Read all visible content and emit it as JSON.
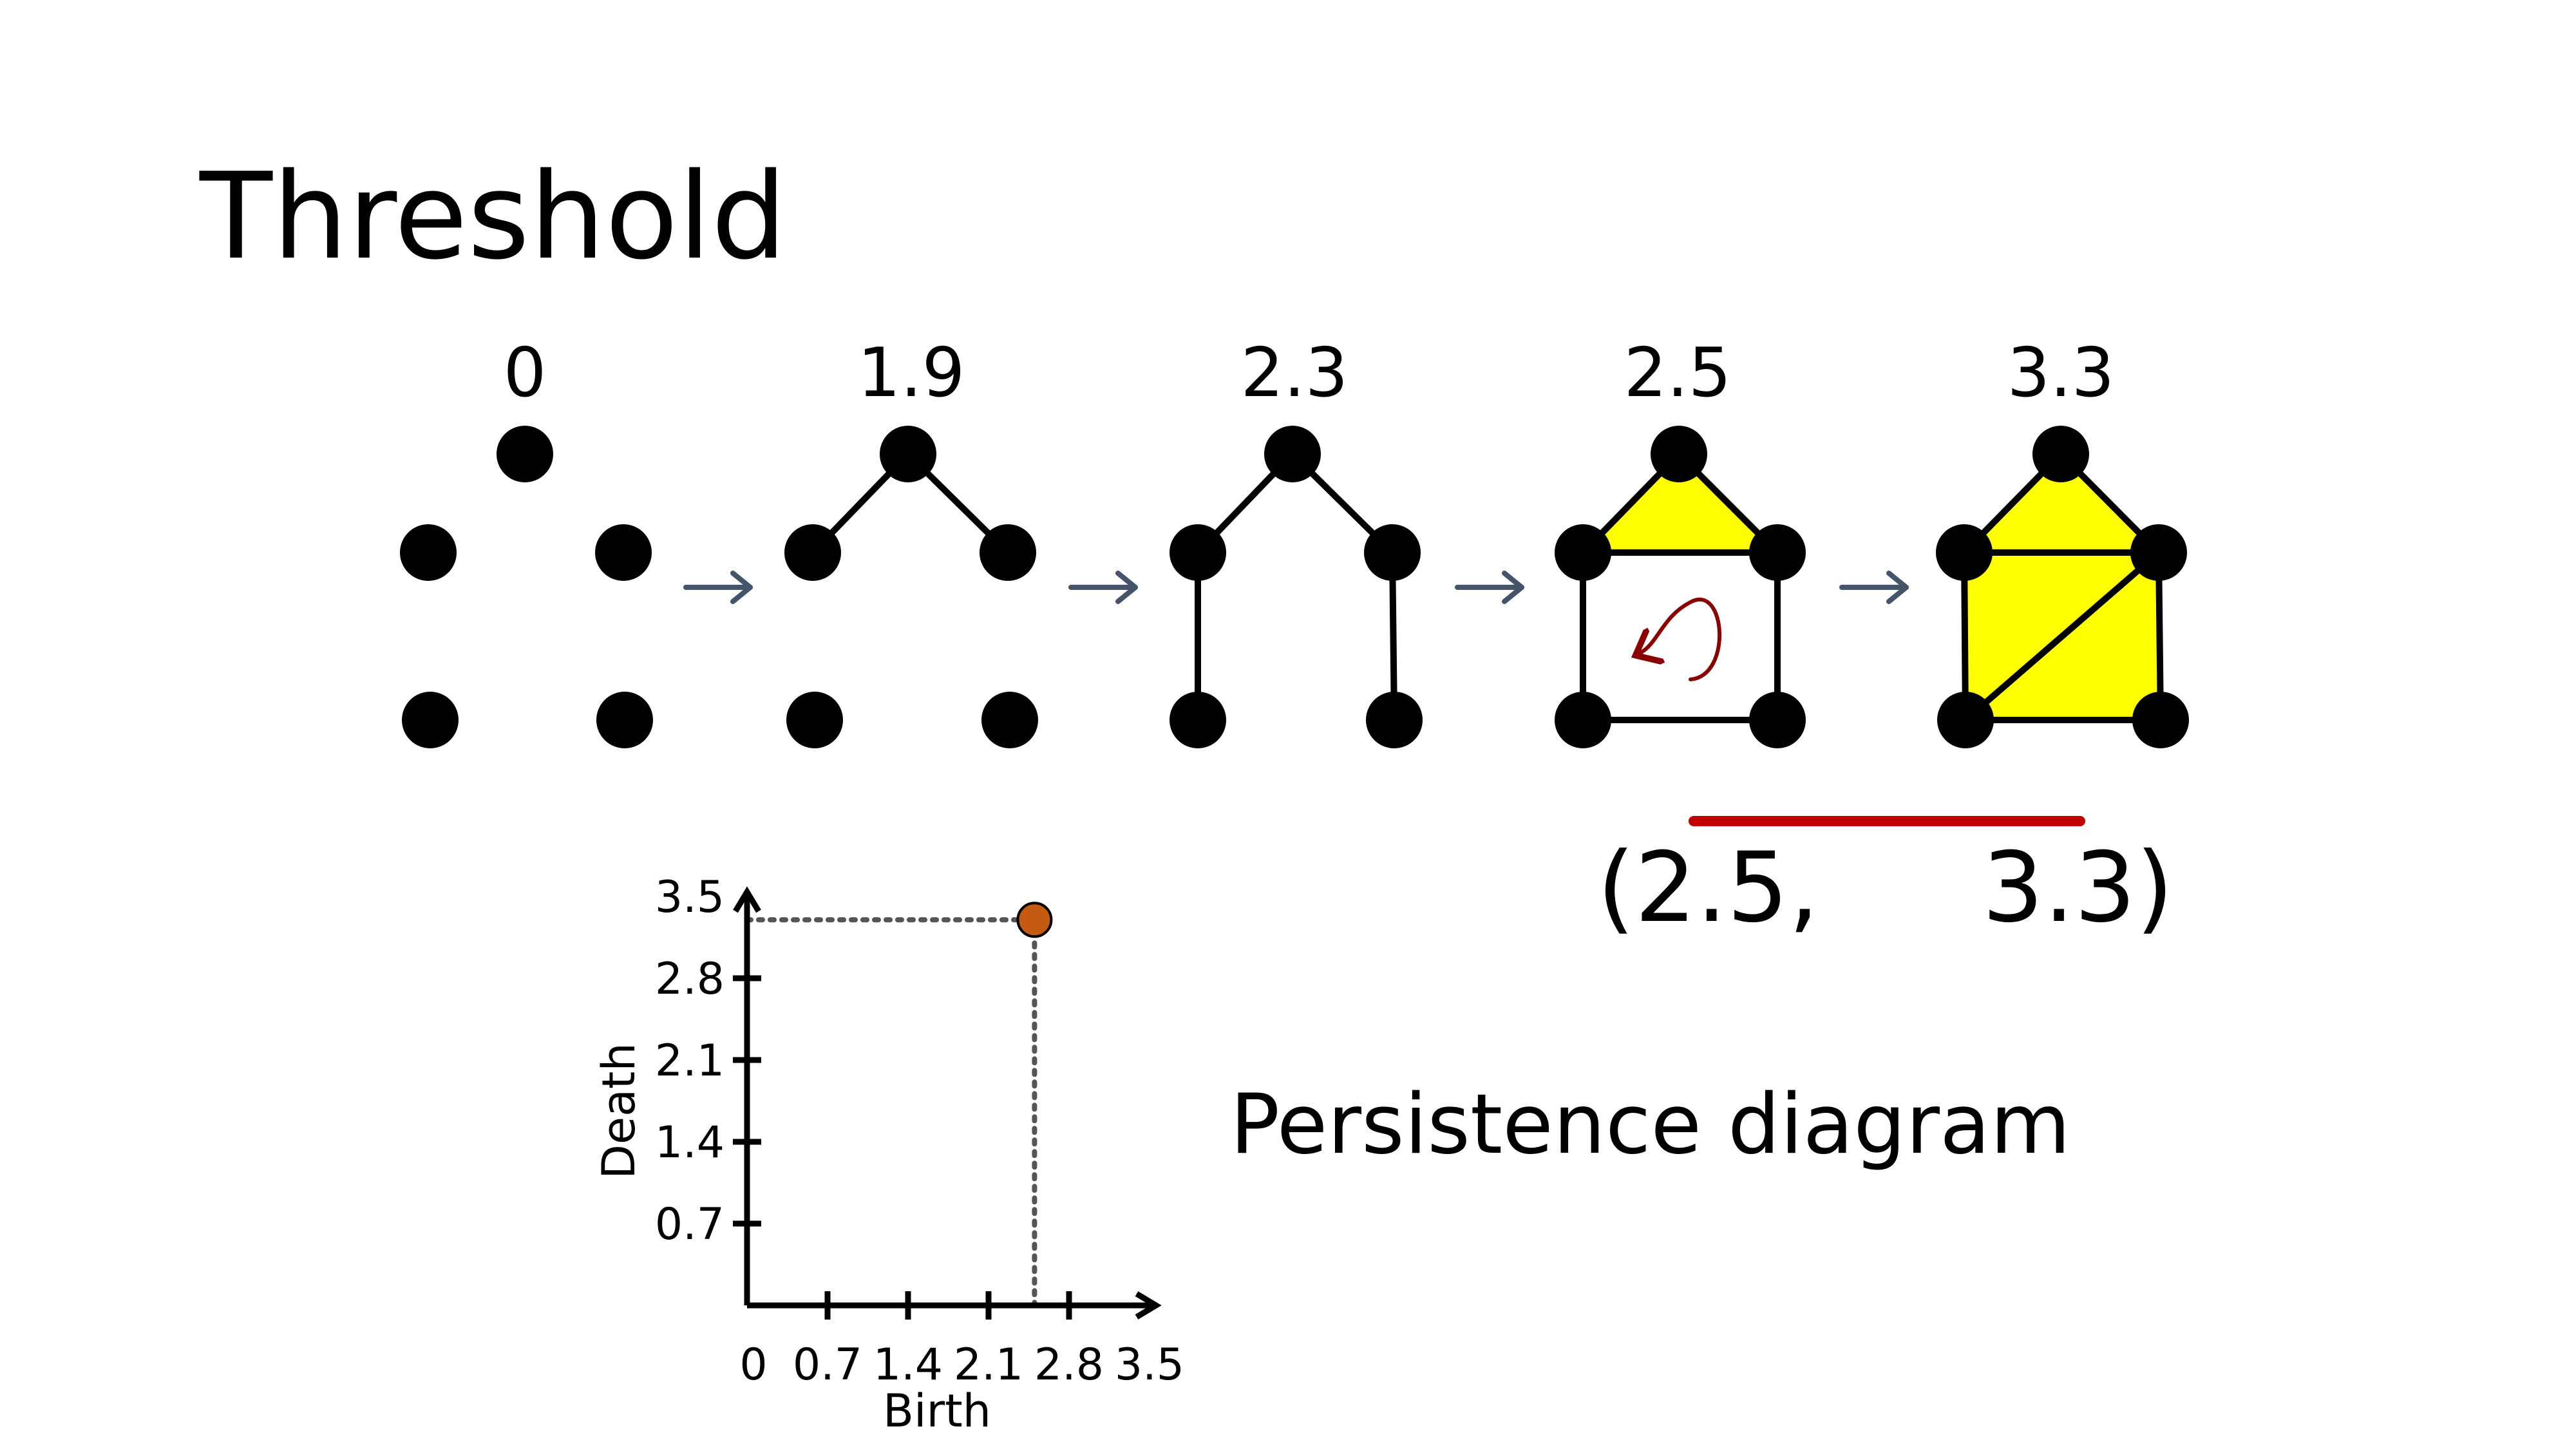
{
  "title": "Threshold",
  "filtration": {
    "thresholds": [
      "0",
      "1.9",
      "2.3",
      "2.5",
      "3.3"
    ]
  },
  "barcode": {
    "open": "(2.5,",
    "close": "3.3)",
    "bar_color": "#c00000"
  },
  "persistence_diagram": {
    "caption": "Persistence diagram",
    "xlabel": "Birth",
    "ylabel": "Death",
    "x_ticks": [
      "0",
      "0.7",
      "1.4",
      "2.1",
      "2.8",
      "3.5"
    ],
    "y_ticks": [
      "0.7",
      "1.4",
      "2.1",
      "2.8",
      "3.5"
    ],
    "point": {
      "birth": 2.5,
      "death": 3.3
    },
    "point_color": "#c55a11"
  },
  "colors": {
    "face": "#ffff00",
    "loop_arrow": "#8b0000",
    "step_arrow": "#44546a"
  }
}
